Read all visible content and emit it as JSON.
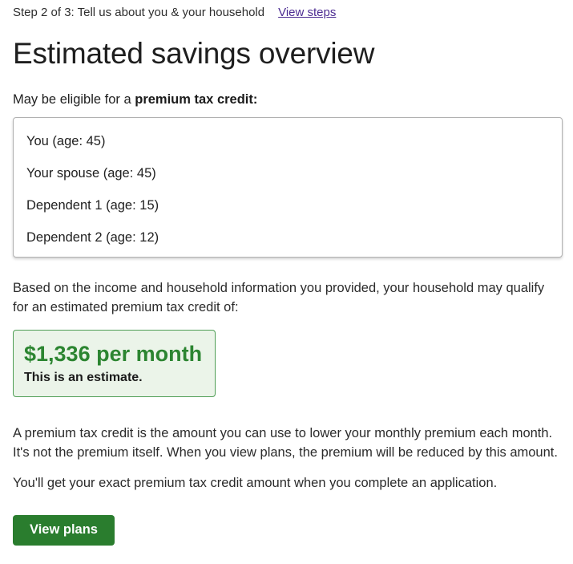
{
  "colors": {
    "accent_green": "#2a7d2e",
    "estimate_text_green": "#2c8531",
    "estimate_box_bg": "#ebf4e9",
    "estimate_box_border": "#4f9e55",
    "visited_link_purple": "#4c2c92",
    "card_border_gray": "#b1b1b1"
  },
  "header": {
    "step_label": "Step 2 of 3: Tell us about you & your household",
    "view_steps_label": "View steps"
  },
  "page": {
    "title": "Estimated savings overview"
  },
  "eligibility": {
    "prefix": "May be eligible for a ",
    "bold": "premium tax credit:"
  },
  "household": {
    "members": [
      "You (age: 45)",
      "Your spouse (age: 45)",
      "Dependent 1 (age: 15)",
      "Dependent 2 (age: 12)"
    ]
  },
  "credit": {
    "intro": "Based on the income and household information you provided, your household may qualify for an estimated premium tax credit of:",
    "amount": "$1,336 per month",
    "note": "This is an estimate."
  },
  "explanation": {
    "p1": "A premium tax credit is the amount you can use to lower your monthly premium each month. It's not the premium itself. When you view plans, the premium will be reduced by this amount.",
    "p2": "You'll get your exact premium tax credit amount when you complete an application."
  },
  "cta": {
    "view_plans_label": "View plans"
  }
}
